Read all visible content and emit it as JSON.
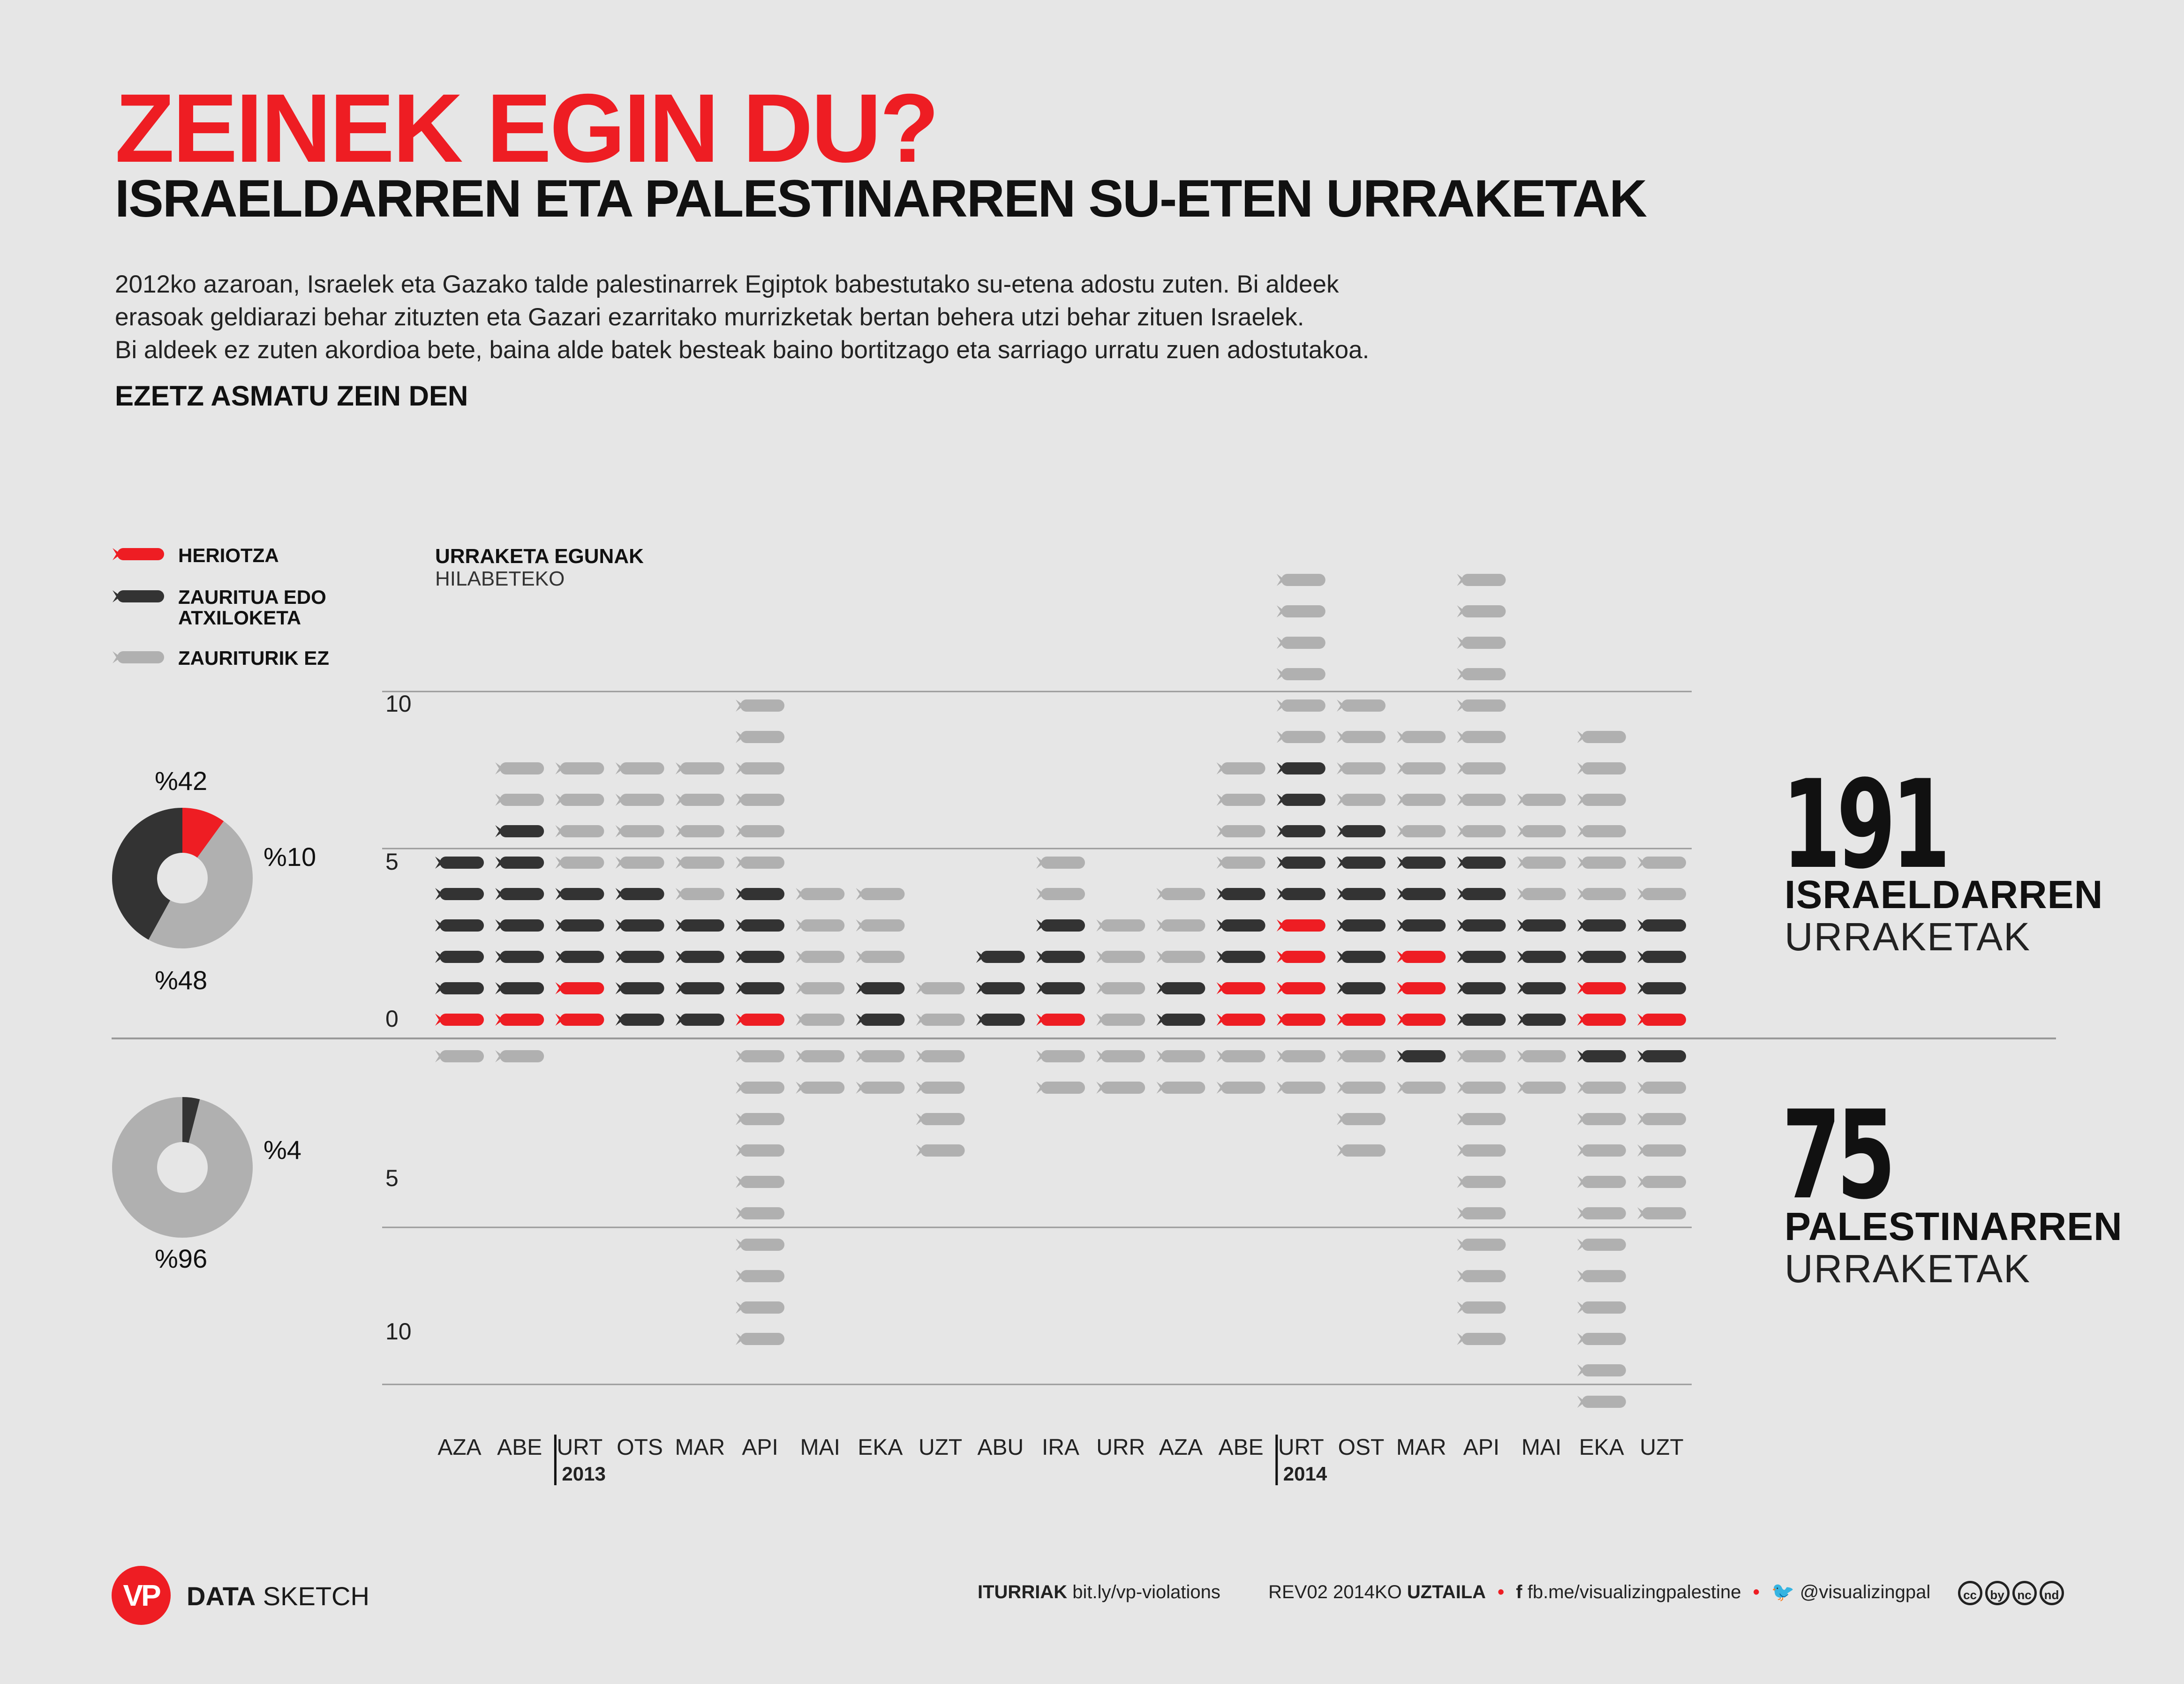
{
  "header": {
    "title": "ZEINEK EGIN DU?",
    "subtitle": "ISRAELDARREN ETA PALESTINARREN SU-ETEN URRAKETAK",
    "intro": [
      "2012ko azaroan, Israelek eta Gazako talde palestinarrek Egiptok babestutako su-etena adostu zuten. Bi aldeek",
      "erasoak geldiarazi behar zituzten eta Gazari ezarritako murrizketak bertan behera utzi behar zituen Israelek.",
      "Bi aldeek ez zuten akordioa bete, baina alde batek besteak baino bortitzago eta sarriago urratu zuen adostutakoa."
    ],
    "tagline": "EZETZ ASMATU ZEIN DEN"
  },
  "legend": {
    "items": [
      {
        "label": "HERIOTZA",
        "color": "#ee1d23"
      },
      {
        "label": "ZAURITUA EDO ATXILOKETA",
        "color": "#333333"
      },
      {
        "label": "ZAURITURIK EZ",
        "color": "#b0b0b0"
      }
    ]
  },
  "chart_head": {
    "title": "URRAKETA EGUNAK",
    "subtitle": "HILABETEKO"
  },
  "summary": {
    "israeli_count": "191",
    "israeli_label_1": "ISRAELDARREN",
    "israeli_label_2": "URRAKETAK",
    "palestinian_count": "75",
    "palestinian_label_1": "PALESTINARREN",
    "palestinian_label_2": "URRAKETAK"
  },
  "pies": {
    "israeli": {
      "labels": {
        "injured": "%42",
        "death": "%10",
        "none": "%48"
      },
      "values": {
        "death": 10,
        "injured": 42,
        "none": 48
      }
    },
    "palestinian": {
      "labels": {
        "injured": "%4",
        "none": "%96"
      },
      "values": {
        "injured": 4,
        "none": 96
      }
    }
  },
  "footer": {
    "logo": "VP",
    "brand_bold": "DATA",
    "brand_light": "SKETCH",
    "sources_label": "ITURRIAK",
    "sources_url": "bit.ly/vp-violations",
    "revision": "REV02  2014KO",
    "revision_month": "UZTAILA",
    "facebook_icon": "f",
    "facebook": "fb.me/visualizingpalestine",
    "twitter": "@visualizingpal",
    "license_icons": [
      "cc",
      "by",
      "nc",
      "nd"
    ]
  },
  "chart_data": {
    "type": "unit-stacked-bar",
    "title": "URRAKETA EGUNAK",
    "subtitle": "HILABETEKO",
    "ylim_israeli": [
      0,
      15
    ],
    "ylim_palestinian": [
      0,
      11
    ],
    "ticks_israeli": [
      "0",
      "5",
      "10"
    ],
    "ticks_palestinian": [
      "5",
      "10"
    ],
    "categories": [
      "AZA",
      "ABE",
      "URT",
      "OTS",
      "MAR",
      "API",
      "MAI",
      "EKA",
      "UZT",
      "ABU",
      "IRA",
      "URR",
      "AZA",
      "ABE",
      "URT",
      "OST",
      "MAR",
      "API",
      "MAI",
      "EKA",
      "UZT"
    ],
    "years": [
      {
        "label": "2013",
        "start_index": 2
      },
      {
        "label": "2014",
        "start_index": 14
      }
    ],
    "series": [
      {
        "name": "ISRAELDARREN URRAKETAK",
        "death": [
          1,
          1,
          2,
          0,
          0,
          1,
          0,
          0,
          0,
          0,
          1,
          0,
          0,
          2,
          4,
          1,
          3,
          0,
          0,
          2,
          1
        ],
        "injured": [
          5,
          6,
          3,
          5,
          4,
          4,
          0,
          2,
          0,
          3,
          3,
          0,
          2,
          3,
          5,
          6,
          3,
          6,
          4,
          2,
          3
        ],
        "none": [
          0,
          2,
          4,
          4,
          5,
          6,
          5,
          3,
          2,
          0,
          2,
          4,
          3,
          4,
          6,
          4,
          4,
          9,
          4,
          6,
          2
        ]
      },
      {
        "name": "PALESTINARREN URRAKETAK",
        "death": [
          0,
          0,
          0,
          0,
          0,
          0,
          0,
          0,
          0,
          0,
          0,
          0,
          0,
          0,
          0,
          0,
          0,
          0,
          0,
          0,
          0
        ],
        "injured": [
          0,
          0,
          0,
          0,
          0,
          0,
          0,
          0,
          0,
          0,
          0,
          0,
          0,
          0,
          0,
          0,
          1,
          0,
          0,
          1,
          1
        ],
        "none": [
          1,
          1,
          0,
          0,
          0,
          10,
          2,
          2,
          4,
          0,
          2,
          2,
          2,
          2,
          2,
          4,
          1,
          10,
          2,
          11,
          5
        ]
      }
    ]
  }
}
